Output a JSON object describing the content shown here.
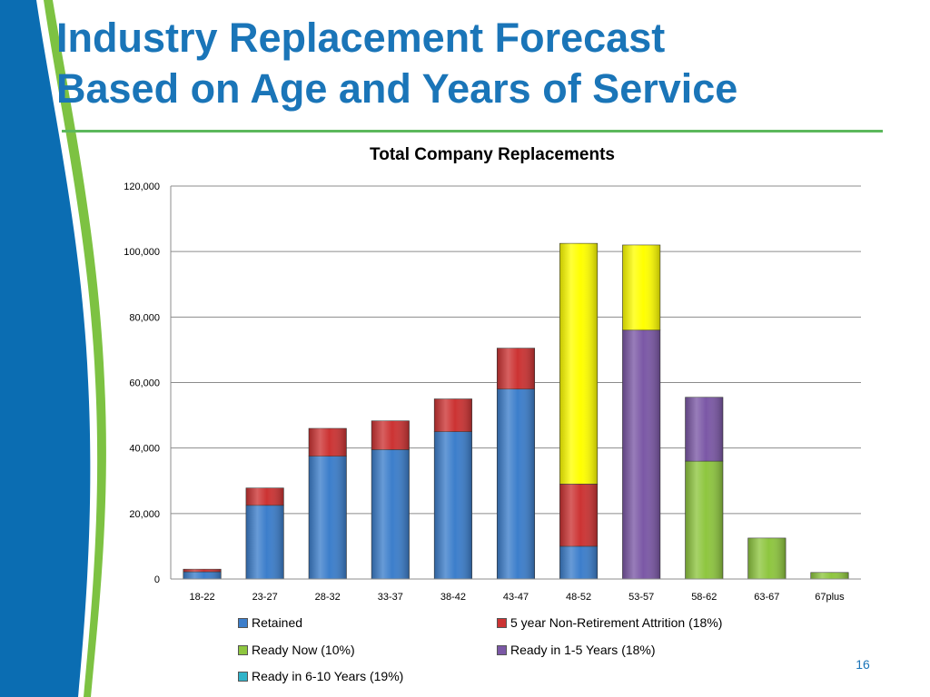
{
  "slide": {
    "title_lines": [
      "Industry Replacement Forecast",
      "Based on Age and Years of Service"
    ],
    "page_number": "16",
    "colors": {
      "title": "#1a75b8",
      "rule": "#5cb85c",
      "band_blue": "#0b6db2",
      "band_green": "#7dc242"
    }
  },
  "chart_data": {
    "type": "bar",
    "stacked": true,
    "title": "Total Company Replacements",
    "xlabel": "",
    "ylabel": "",
    "categories": [
      "18-22",
      "23-27",
      "28-32",
      "33-37",
      "38-42",
      "43-47",
      "48-52",
      "53-57",
      "58-62",
      "63-67",
      "67plus"
    ],
    "ylim": [
      0,
      120000
    ],
    "yticks": [
      0,
      20000,
      40000,
      60000,
      80000,
      100000,
      120000
    ],
    "ytick_labels": [
      "0",
      "20,000",
      "40,000",
      "60,000",
      "80,000",
      "100,000",
      "120,000"
    ],
    "grid": true,
    "legend_position": "bottom",
    "series": [
      {
        "name": "Retained",
        "color": "#3c7ecb",
        "values": [
          2200,
          22500,
          37500,
          39500,
          45000,
          58000,
          10000,
          0,
          0,
          0,
          0
        ]
      },
      {
        "name": "5 year Non-Retirement Attrition (18%)",
        "color": "#cc3333",
        "values": [
          800,
          5300,
          8500,
          8800,
          10000,
          12500,
          19000,
          0,
          0,
          0,
          0
        ]
      },
      {
        "name": "Ready Now (10%)",
        "color": "#8ec63f",
        "values": [
          0,
          0,
          0,
          0,
          0,
          0,
          0,
          0,
          36000,
          12500,
          2000
        ]
      },
      {
        "name": "Ready in 1-5 Years (18%)",
        "color": "#7b58a6",
        "values": [
          0,
          0,
          0,
          0,
          0,
          0,
          0,
          76000,
          19500,
          0,
          0
        ]
      },
      {
        "name": "Ready in 6-10 Years (19%)",
        "color": "#2fb3c9",
        "values": [
          0,
          0,
          0,
          0,
          0,
          0,
          0,
          0,
          0,
          0,
          0
        ]
      },
      {
        "name": "",
        "color": "#ffff00",
        "values": [
          0,
          0,
          0,
          0,
          0,
          0,
          73500,
          26000,
          0,
          0,
          0
        ]
      }
    ]
  }
}
